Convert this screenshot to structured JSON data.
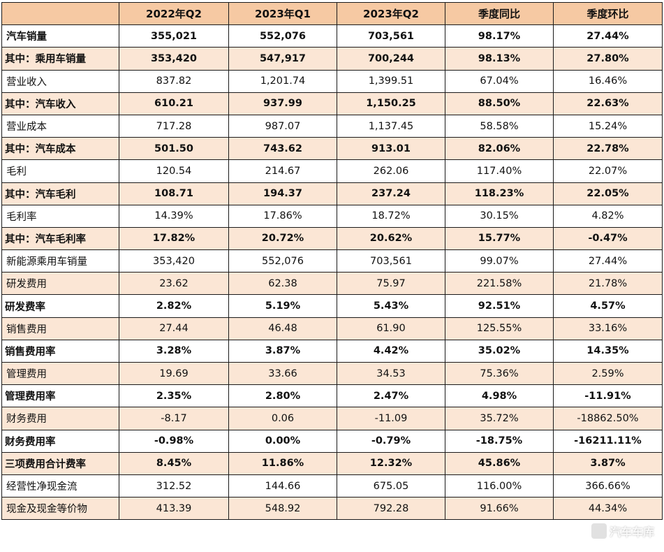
{
  "table": {
    "header": [
      "",
      "2022年Q2",
      "2023年Q1",
      "2023年Q2",
      "季度同比",
      "季度环比"
    ],
    "rows": [
      {
        "label": "汽车销量",
        "values": [
          "355,021",
          "552,076",
          "703,561",
          "98.17%",
          "27.44%"
        ]
      },
      {
        "label": "其中：乘用车销量",
        "values": [
          "353,420",
          "547,917",
          "700,244",
          "98.13%",
          "27.80%"
        ]
      },
      {
        "label": "营业收入",
        "values": [
          "837.82",
          "1,201.74",
          "1,399.51",
          "67.04%",
          "16.46%"
        ]
      },
      {
        "label": "其中：汽车收入",
        "values": [
          "610.21",
          "937.99",
          "1,150.25",
          "88.50%",
          "22.63%"
        ]
      },
      {
        "label": "营业成本",
        "values": [
          "717.28",
          "987.07",
          "1,137.45",
          "58.58%",
          "15.24%"
        ]
      },
      {
        "label": "其中：汽车成本",
        "values": [
          "501.50",
          "743.62",
          "913.01",
          "82.06%",
          "22.78%"
        ]
      },
      {
        "label": "毛利",
        "values": [
          "120.54",
          "214.67",
          "262.06",
          "117.40%",
          "22.07%"
        ]
      },
      {
        "label": "其中：汽车毛利",
        "values": [
          "108.71",
          "194.37",
          "237.24",
          "118.23%",
          "22.05%"
        ]
      },
      {
        "label": "毛利率",
        "values": [
          "14.39%",
          "17.86%",
          "18.72%",
          "30.15%",
          "4.82%"
        ]
      },
      {
        "label": "其中：汽车毛利率",
        "values": [
          "17.82%",
          "20.72%",
          "20.62%",
          "15.77%",
          "-0.47%"
        ]
      },
      {
        "label": "新能源乘用车销量",
        "values": [
          "353,420",
          "552,076",
          "703,561",
          "99.07%",
          "27.44%"
        ]
      },
      {
        "label": "研发费用",
        "values": [
          "23.62",
          "62.38",
          "75.97",
          "221.58%",
          "21.78%"
        ]
      },
      {
        "label": "研发费率",
        "values": [
          "2.82%",
          "5.19%",
          "5.43%",
          "92.51%",
          "4.57%"
        ]
      },
      {
        "label": "销售费用",
        "values": [
          "27.44",
          "46.48",
          "61.90",
          "125.55%",
          "33.16%"
        ]
      },
      {
        "label": "销售费用率",
        "values": [
          "3.28%",
          "3.87%",
          "4.42%",
          "35.02%",
          "14.35%"
        ]
      },
      {
        "label": "管理费用",
        "values": [
          "19.69",
          "33.66",
          "34.53",
          "75.36%",
          "2.59%"
        ]
      },
      {
        "label": "管理费用率",
        "values": [
          "2.35%",
          "2.80%",
          "2.47%",
          "4.98%",
          "-11.91%"
        ]
      },
      {
        "label": "财务费用",
        "values": [
          "-8.17",
          "0.06",
          "-11.09",
          "35.72%",
          "-18862.50%"
        ]
      },
      {
        "label": "财务费用率",
        "values": [
          "-0.98%",
          "0.00%",
          "-0.79%",
          "-18.75%",
          "-16211.11%"
        ]
      },
      {
        "label": "三项费用合计费率",
        "values": [
          "8.45%",
          "11.86%",
          "12.32%",
          "45.86%",
          "3.87%"
        ]
      },
      {
        "label": "经营性净现金流",
        "values": [
          "312.52",
          "144.66",
          "675.05",
          "116.00%",
          "366.66%"
        ]
      },
      {
        "label": "现金及现金等价物",
        "values": [
          "413.39",
          "548.92",
          "792.28",
          "91.66%",
          "44.34%"
        ]
      }
    ]
  },
  "watermark": {
    "text": "汽车车库"
  }
}
